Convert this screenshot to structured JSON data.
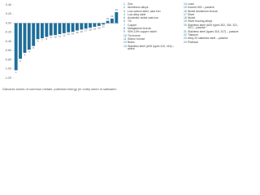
{
  "chart_data": {
    "type": "bar",
    "caption": "Galvanic series of common metals: potential energy (in volts) when in saltwater.",
    "categories": [
      "1",
      "2",
      "3",
      "4",
      "5",
      "6",
      "7",
      "8",
      "9",
      "10",
      "11",
      "12",
      "13",
      "14",
      "15",
      "16",
      "17",
      "18",
      "19",
      "20",
      "21",
      "22",
      "23",
      "24"
    ],
    "values": [
      -1.03,
      -0.78,
      -0.65,
      -0.58,
      -0.5,
      -0.35,
      -0.33,
      -0.3,
      -0.27,
      -0.26,
      -0.24,
      -0.22,
      -0.2,
      -0.19,
      -0.16,
      -0.14,
      -0.12,
      -0.1,
      -0.08,
      -0.06,
      -0.03,
      0.05,
      0.1,
      0.24
    ],
    "color": "#1f6f9a",
    "ylim": [
      -1.2,
      0.4
    ],
    "yticks": [
      {
        "value": 0.4,
        "label": "0.40"
      },
      {
        "value": 0.2,
        "label": "0.20"
      },
      {
        "value": 0,
        "label": "0.00"
      },
      {
        "value": -0.2,
        "label": "-0.20"
      },
      {
        "value": -0.4,
        "label": "-0.40"
      },
      {
        "value": -0.6,
        "label": "-0.60"
      },
      {
        "value": -0.8,
        "label": "-0.80"
      },
      {
        "value": -1,
        "label": "-1.00"
      },
      {
        "value": -1.2,
        "label": "-1.20"
      }
    ],
    "grid": false,
    "legend_items": [
      {
        "number": "1",
        "label": "Zinc"
      },
      {
        "number": "2",
        "label": "Aluminium alloys"
      },
      {
        "number": "3",
        "label": "Low-carbon steel, cast iron"
      },
      {
        "number": "4",
        "label": "Low alloy steel"
      },
      {
        "number": "5",
        "label": "Austenitic nickel cast iron"
      },
      {
        "number": "6",
        "label": "Tin"
      },
      {
        "number": "7",
        "label": "Copper"
      },
      {
        "number": "8",
        "label": "Manganese bronze"
      },
      {
        "number": "9",
        "label": "90%-10% copper nickel"
      },
      {
        "number": "10",
        "label": "Tin bronze"
      },
      {
        "number": "11",
        "label": "Silicon bronze"
      },
      {
        "number": "12",
        "label": "Brass"
      },
      {
        "number": "13",
        "label": "Stainless steel (AISI types 410, 416) – active"
      },
      {
        "number": "14",
        "label": "Lead"
      },
      {
        "number": "15",
        "label": "Inconel 600 – passive"
      },
      {
        "number": "16",
        "label": "Nickel aluminium bronze"
      },
      {
        "number": "17",
        "label": "Silver"
      },
      {
        "number": "18",
        "label": "Nickel"
      },
      {
        "number": "19",
        "label": "Silver brazing alloys"
      },
      {
        "number": "20",
        "label": "Stainless steel (AISI types 302, 304, 321, 347) – passive"
      },
      {
        "number": "21",
        "label": "Stainless steel (types 316, 317) – passive"
      },
      {
        "number": "22",
        "label": "Titanium"
      },
      {
        "number": "23",
        "label": "Alloy 20 stainless steel – passive"
      },
      {
        "number": "24",
        "label": "Platinum"
      }
    ]
  }
}
